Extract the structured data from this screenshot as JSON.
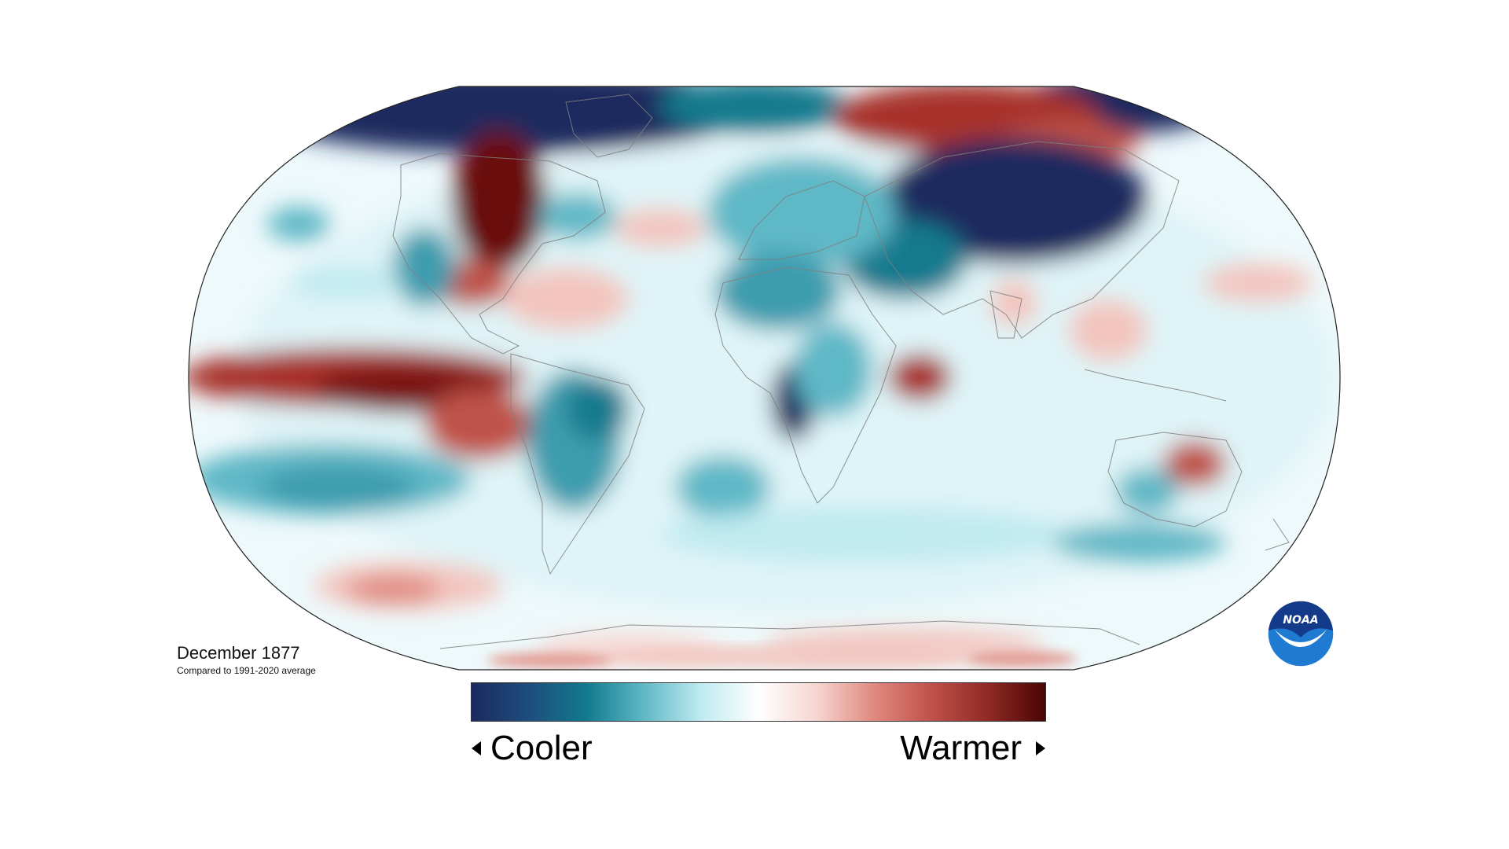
{
  "map": {
    "title": "December 1877",
    "subtitle": "Compared to 1991-2020 average",
    "projection": "Robinson (Pacific-split, centered on Greenwich)",
    "palette": {
      "coolest": "#1b2a5e",
      "cool": "#127a8e",
      "light_cool": "#bfeaf0",
      "neutral": "#ffffff",
      "light_warm": "#f3c5bd",
      "warm": "#c0524a",
      "warmest": "#4a0505"
    },
    "anomaly_regions": [
      {
        "region": "Arctic Canada / Greenland",
        "sign": "cooler"
      },
      {
        "region": "Hudson Bay / Central Canada",
        "sign": "warmer"
      },
      {
        "region": "Northern Siberia",
        "sign": "warmer"
      },
      {
        "region": "Central and East Asia",
        "sign": "cooler"
      },
      {
        "region": "Eastern tropical Pacific",
        "sign": "warmer"
      },
      {
        "region": "Western Indian Ocean",
        "sign": "warmer"
      },
      {
        "region": "Central Africa",
        "sign": "cooler"
      },
      {
        "region": "South America",
        "sign": "cooler"
      },
      {
        "region": "Central Australia",
        "sign": "warmer"
      },
      {
        "region": "Southern Ocean",
        "sign": "cooler"
      }
    ]
  },
  "colorbar": {
    "left_label": "Cooler",
    "right_label": "Warmer",
    "colors": [
      "#1b2a5e",
      "#1d4d7d",
      "#127a8e",
      "#5fb8c6",
      "#bfeaf0",
      "#ffffff",
      "#f7d6d1",
      "#e08a80",
      "#c0524a",
      "#8f2a25",
      "#4a0505"
    ]
  },
  "logo": {
    "text": "NOAA",
    "colors": {
      "top": "#143a8a",
      "bottom": "#1f7ad1",
      "bird": "#ffffff"
    }
  }
}
